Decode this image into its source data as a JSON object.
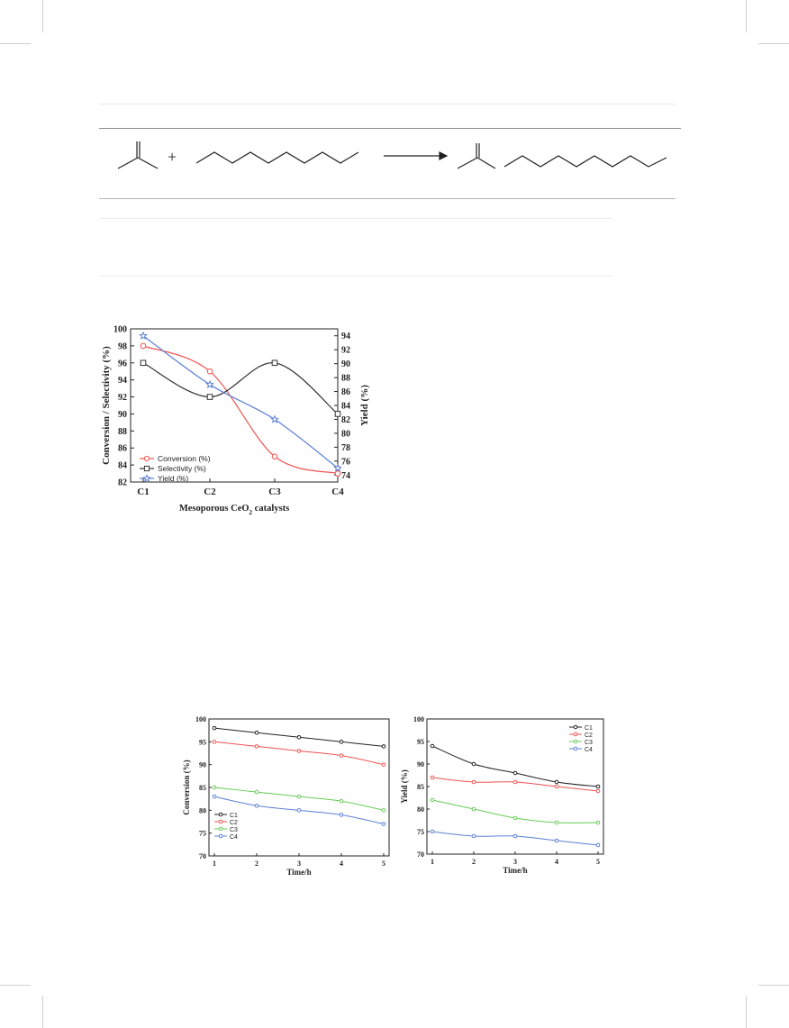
{
  "scheme": {
    "plus": "+"
  },
  "charts": [
    {
      "type": "line",
      "categories": [
        "C1",
        "C2",
        "C3",
        "C4"
      ],
      "xlabel": "Mesoporous CeO2 catalysts",
      "ylabel": "Conversion / Selectivity (%)",
      "y2label": "Yield (%)",
      "ylim": [
        82,
        100
      ],
      "yticks": [
        82,
        84,
        86,
        88,
        90,
        92,
        94,
        96,
        98,
        100
      ],
      "y2lim": [
        73,
        95
      ],
      "y2ticks": [
        74,
        76,
        78,
        80,
        82,
        84,
        86,
        88,
        90,
        92,
        94
      ],
      "legend_position": "bottom-left",
      "series": [
        {
          "name": "Conversion (%)",
          "axis": "left",
          "values": [
            98,
            95,
            85,
            83
          ],
          "color": "#ef5350",
          "marker": "circle"
        },
        {
          "name": "Selectivity (%)",
          "axis": "left",
          "values": [
            96,
            92,
            96,
            90
          ],
          "color": "#333333",
          "marker": "square"
        },
        {
          "name": "Yield (%)",
          "axis": "right",
          "values": [
            94,
            87,
            82,
            75
          ],
          "color": "#5b7fd6",
          "marker": "star"
        }
      ]
    },
    {
      "type": "line",
      "x": [
        1,
        2,
        3,
        4,
        5
      ],
      "xlabel": "Time/h",
      "ylabel": "Conversion (%)",
      "ylim": [
        70,
        100
      ],
      "yticks": [
        70,
        75,
        80,
        85,
        90,
        95,
        100
      ],
      "legend_position": "bottom-left",
      "series": [
        {
          "name": "C1",
          "values": [
            98,
            97,
            96,
            95,
            94
          ],
          "color": "#222222"
        },
        {
          "name": "C2",
          "values": [
            95,
            94,
            93,
            92,
            90
          ],
          "color": "#ef5350"
        },
        {
          "name": "C3",
          "values": [
            85,
            84,
            83,
            82,
            80
          ],
          "color": "#66cc55"
        },
        {
          "name": "C4",
          "values": [
            83,
            81,
            80,
            79,
            77
          ],
          "color": "#5b7fd6"
        }
      ]
    },
    {
      "type": "line",
      "x": [
        1,
        2,
        3,
        4,
        5
      ],
      "xlabel": "Time/h",
      "ylabel": "Yield (%)",
      "ylim": [
        70,
        100
      ],
      "yticks": [
        70,
        75,
        80,
        85,
        90,
        95,
        100
      ],
      "legend_position": "top-right",
      "series": [
        {
          "name": "C1",
          "values": [
            94,
            90,
            88,
            86,
            85
          ],
          "color": "#222222"
        },
        {
          "name": "C2",
          "values": [
            87,
            86,
            86,
            85,
            84
          ],
          "color": "#ef5350"
        },
        {
          "name": "C3",
          "values": [
            82,
            80,
            78,
            77,
            77
          ],
          "color": "#66cc55"
        },
        {
          "name": "C4",
          "values": [
            75,
            74,
            74,
            73,
            72
          ],
          "color": "#5b7fd6"
        }
      ]
    }
  ],
  "chart_data": [
    {
      "type": "line",
      "categories": [
        "C1",
        "C2",
        "C3",
        "C4"
      ],
      "xlabel": "Mesoporous CeO2 catalysts",
      "ylabel": "Conversion / Selectivity (%)",
      "y2label": "Yield (%)",
      "ylim": [
        82,
        100
      ],
      "y2lim": [
        73,
        95
      ],
      "series": [
        {
          "name": "Conversion (%)",
          "values": [
            98,
            95,
            85,
            83
          ]
        },
        {
          "name": "Selectivity (%)",
          "values": [
            96,
            92,
            96,
            90
          ]
        },
        {
          "name": "Yield (%)",
          "values": [
            94,
            87,
            82,
            75
          ]
        }
      ]
    },
    {
      "type": "line",
      "x": [
        1,
        2,
        3,
        4,
        5
      ],
      "xlabel": "Time/h",
      "ylabel": "Conversion (%)",
      "ylim": [
        70,
        100
      ],
      "series": [
        {
          "name": "C1",
          "values": [
            98,
            97,
            96,
            95,
            94
          ]
        },
        {
          "name": "C2",
          "values": [
            95,
            94,
            93,
            92,
            90
          ]
        },
        {
          "name": "C3",
          "values": [
            85,
            84,
            83,
            82,
            80
          ]
        },
        {
          "name": "C4",
          "values": [
            83,
            81,
            80,
            79,
            77
          ]
        }
      ]
    },
    {
      "type": "line",
      "x": [
        1,
        2,
        3,
        4,
        5
      ],
      "xlabel": "Time/h",
      "ylabel": "Yield (%)",
      "ylim": [
        70,
        100
      ],
      "series": [
        {
          "name": "C1",
          "values": [
            94,
            90,
            88,
            86,
            85
          ]
        },
        {
          "name": "C2",
          "values": [
            87,
            86,
            86,
            85,
            84
          ]
        },
        {
          "name": "C3",
          "values": [
            82,
            80,
            78,
            77,
            77
          ]
        },
        {
          "name": "C4",
          "values": [
            75,
            74,
            74,
            73,
            72
          ]
        }
      ]
    }
  ]
}
